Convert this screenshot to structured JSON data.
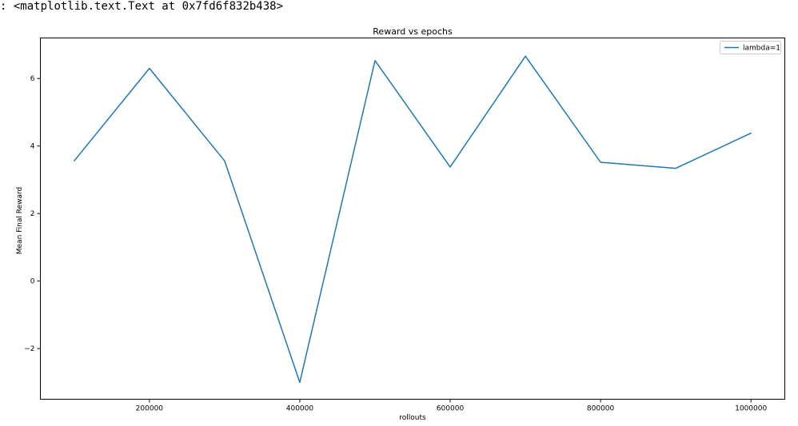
{
  "output": {
    "prompt": ":",
    "repr": "<matplotlib.text.Text at 0x7fd6f832b438>"
  },
  "colors": {
    "series": "#1f77b4",
    "axes": "#000000",
    "background": "#ffffff"
  },
  "chart_data": {
    "type": "line",
    "title": "Reward vs epochs",
    "xlabel": "rollouts",
    "ylabel": "Mean Final Reward",
    "xlim": [
      55000,
      1045000
    ],
    "ylim": [
      -3.5,
      7.2
    ],
    "grid": false,
    "legend_position": "top-right",
    "x_ticks": [
      200000,
      400000,
      600000,
      800000,
      1000000
    ],
    "x_tick_labels": [
      "200000",
      "400000",
      "600000",
      "800000",
      "1000000"
    ],
    "y_ticks": [
      -2,
      0,
      2,
      4,
      6
    ],
    "y_tick_labels": [
      "−2",
      "0",
      "2",
      "4",
      "6"
    ],
    "x": [
      100000,
      200000,
      300000,
      400000,
      500000,
      600000,
      700000,
      800000,
      900000,
      1000000
    ],
    "series": [
      {
        "name": "lambda=1",
        "values": [
          3.56,
          6.3,
          3.56,
          -3.0,
          6.53,
          3.38,
          6.66,
          3.52,
          3.34,
          4.38
        ]
      }
    ]
  }
}
